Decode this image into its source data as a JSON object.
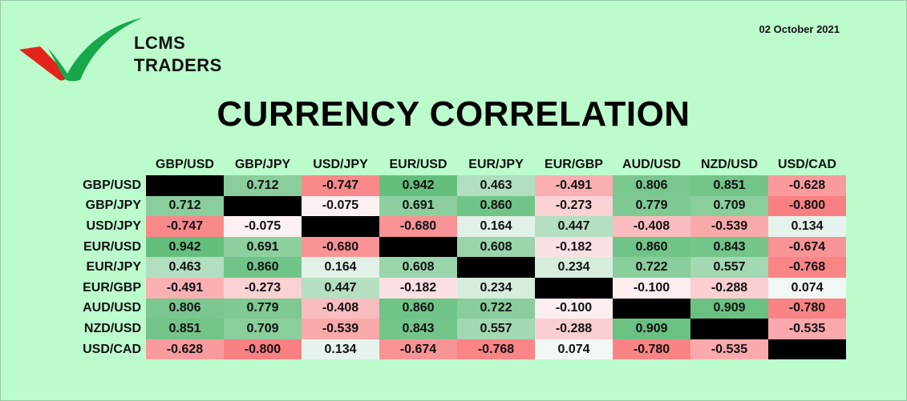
{
  "brand": {
    "line1": "LCMS",
    "line2": "TRADERS"
  },
  "date": "02 October 2021",
  "title": "CURRENCY CORRELATION",
  "colors": {
    "background": "#bcfccc",
    "positive": "#63be7b",
    "negative": "#f8696b",
    "neutral": "#fcfcff",
    "diagonal": "#000000",
    "logo_green": "#16a84a",
    "logo_red": "#e3241b"
  },
  "chart_data": {
    "type": "heatmap",
    "title": "CURRENCY CORRELATION",
    "columns": [
      "GBP/USD",
      "GBP/JPY",
      "USD/JPY",
      "EUR/USD",
      "EUR/JPY",
      "EUR/GBP",
      "AUD/USD",
      "NZD/USD",
      "USD/CAD"
    ],
    "rows": [
      "GBP/USD",
      "GBP/JPY",
      "USD/JPY",
      "EUR/USD",
      "EUR/JPY",
      "EUR/GBP",
      "AUD/USD",
      "NZD/USD",
      "USD/CAD"
    ],
    "values": [
      [
        null,
        "0.712",
        "-0.747",
        "0.942",
        "0.463",
        "-0.491",
        "0.806",
        "0.851",
        "-0.628"
      ],
      [
        "0.712",
        null,
        "-0.075",
        "0.691",
        "0.860",
        "-0.273",
        "0.779",
        "0.709",
        "-0.800"
      ],
      [
        "-0.747",
        "-0.075",
        null,
        "-0.680",
        "0.164",
        "0.447",
        "-0.408",
        "-0.539",
        "0.134"
      ],
      [
        "0.942",
        "0.691",
        "-0.680",
        null,
        "0.608",
        "-0.182",
        "0.860",
        "0.843",
        "-0.674"
      ],
      [
        "0.463",
        "0.860",
        "0.164",
        "0.608",
        null,
        "0.234",
        "0.722",
        "0.557",
        "-0.768"
      ],
      [
        "-0.491",
        "-0.273",
        "0.447",
        "-0.182",
        "0.234",
        null,
        "-0.100",
        "-0.288",
        "0.074"
      ],
      [
        "0.806",
        "0.779",
        "-0.408",
        "0.860",
        "0.722",
        "-0.100",
        null,
        "0.909",
        "-0.780"
      ],
      [
        "0.851",
        "0.709",
        "-0.539",
        "0.843",
        "0.557",
        "-0.288",
        "0.909",
        null,
        "-0.535"
      ],
      [
        "-0.628",
        "-0.800",
        "0.134",
        "-0.674",
        "-0.768",
        "0.074",
        "-0.780",
        "-0.535",
        null
      ]
    ],
    "diagonal": "black",
    "color_scale": "red (negative) to white (zero) to green (positive)"
  }
}
